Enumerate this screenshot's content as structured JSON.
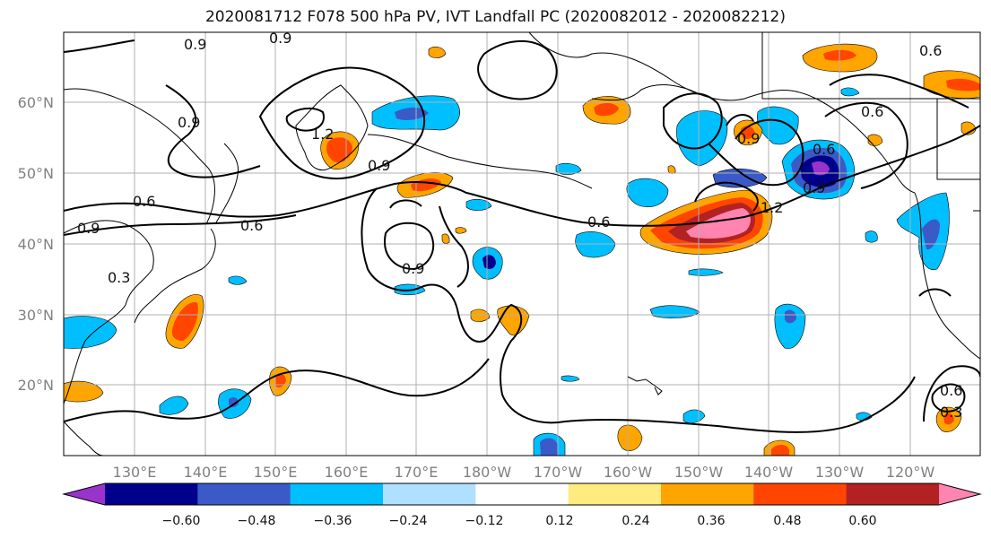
{
  "title": "2020081712 F078 500 hPa PV, IVT Landfall PC (2020082012 - 2020082212)",
  "lat_labels": [
    "60°N",
    "50°N",
    "40°N",
    "30°N",
    "20°N"
  ],
  "lon_labels": [
    "130°E",
    "140°E",
    "150°E",
    "160°E",
    "170°E",
    "180°W",
    "170°W",
    "160°W",
    "150°W",
    "140°W",
    "130°W",
    "120°W"
  ],
  "colorbar": {
    "colors": [
      "#9933cc",
      "#00008b",
      "#3a5bc7",
      "#00bfff",
      "#b0e0ff",
      "#ffffff",
      "#ffeb80",
      "#ffa500",
      "#ff4500",
      "#b22222",
      "#ff85b0"
    ],
    "tick_labels": [
      "−0.60",
      "−0.48",
      "−0.36",
      "−0.24",
      "−0.12",
      "0.12",
      "0.24",
      "0.36",
      "0.48",
      "0.60"
    ]
  },
  "contour_labels": [
    "0.9",
    "0.9",
    "0.9",
    "1.2",
    "0.9",
    "0.6",
    "0.6",
    "0.9",
    "0.6",
    "0.9",
    "0.6",
    "0.9",
    "1.2",
    "0.6",
    "0.9",
    "0.6",
    "0.6",
    "0.3",
    "0.3"
  ]
}
